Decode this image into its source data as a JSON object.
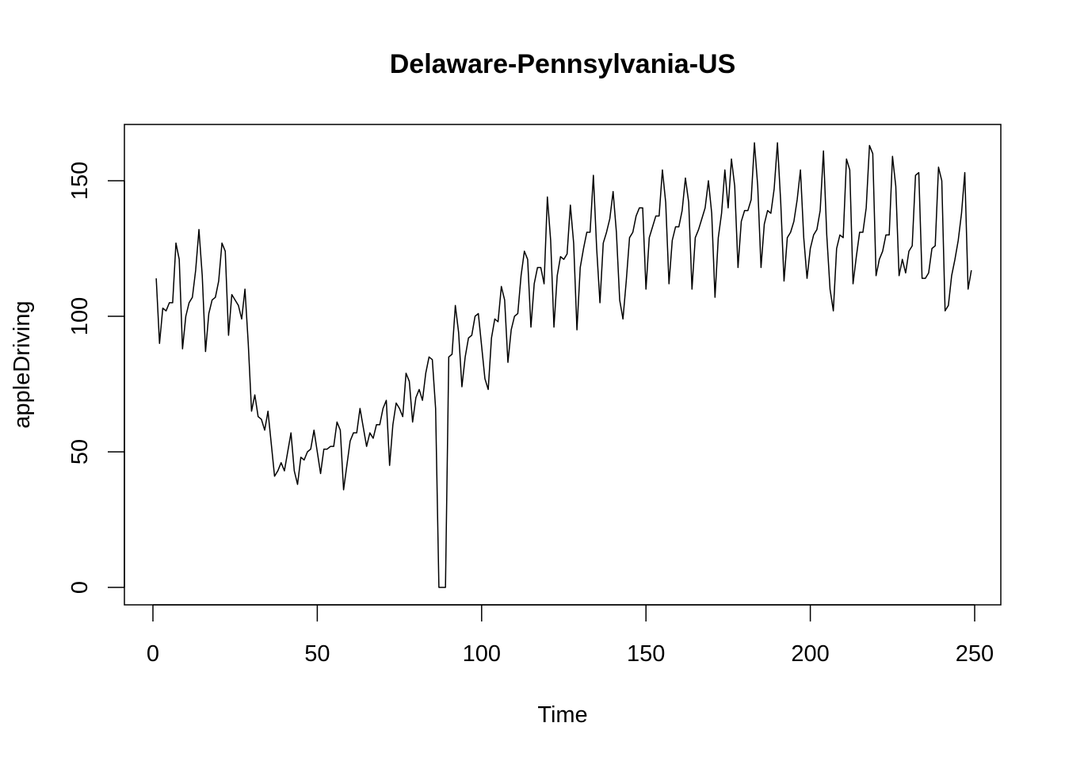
{
  "chart_data": {
    "type": "line",
    "title": "Delaware-Pennsylvania-US",
    "xlabel": "Time",
    "ylabel": "appleDriving",
    "xlim": [
      0,
      250
    ],
    "ylim": [
      0,
      165
    ],
    "x_ticks": [
      0,
      50,
      100,
      150,
      200,
      250
    ],
    "y_ticks": [
      0,
      50,
      100,
      150
    ],
    "grid": false,
    "legend": "none",
    "line_color": "#000000",
    "series": [
      {
        "x_start": 1,
        "values": [
          114,
          90,
          103,
          102,
          105,
          105,
          127,
          121,
          88,
          100,
          105,
          107,
          117,
          132,
          115,
          87,
          101,
          106,
          107,
          113,
          127,
          124,
          93,
          108,
          106,
          104,
          99,
          110,
          90,
          65,
          71,
          63,
          62,
          58,
          65,
          53,
          41,
          43,
          46,
          43,
          50,
          57,
          43,
          38,
          48,
          47,
          50,
          51,
          58,
          50,
          42,
          51,
          51,
          52,
          52,
          61,
          58,
          36,
          45,
          54,
          57,
          57,
          66,
          59,
          52,
          57,
          55,
          60,
          60,
          66,
          69,
          45,
          60,
          68,
          66,
          63,
          79,
          76,
          61,
          70,
          73,
          69,
          79,
          85,
          84,
          66,
          0,
          0,
          0,
          85,
          86,
          104,
          94,
          74,
          85,
          92,
          93,
          100,
          101,
          89,
          77,
          73,
          92,
          99,
          98,
          111,
          106,
          83,
          95,
          100,
          101,
          115,
          124,
          121,
          96,
          112,
          118,
          118,
          112,
          144,
          128,
          96,
          115,
          122,
          121,
          123,
          141,
          127,
          95,
          118,
          125,
          131,
          131,
          152,
          125,
          105,
          127,
          131,
          136,
          146,
          131,
          106,
          99,
          113,
          129,
          131,
          137,
          140,
          140,
          110,
          129,
          133,
          137,
          137,
          154,
          142,
          112,
          128,
          133,
          133,
          139,
          151,
          142,
          110,
          129,
          132,
          136,
          140,
          150,
          138,
          107,
          129,
          138,
          154,
          140,
          158,
          148,
          118,
          135,
          139,
          139,
          143,
          164,
          148,
          118,
          134,
          139,
          138,
          147,
          164,
          142,
          113,
          129,
          131,
          135,
          143,
          154,
          129,
          114,
          125,
          130,
          132,
          139,
          161,
          130,
          110,
          102,
          125,
          130,
          129,
          158,
          154,
          112,
          122,
          131,
          131,
          140,
          163,
          160,
          115,
          121,
          124,
          130,
          130,
          159,
          148,
          115,
          121,
          116,
          124,
          126,
          152,
          153,
          114,
          114,
          116,
          125,
          126,
          155,
          150,
          102,
          104,
          115,
          121,
          128,
          138,
          153,
          110,
          117
        ]
      }
    ]
  }
}
